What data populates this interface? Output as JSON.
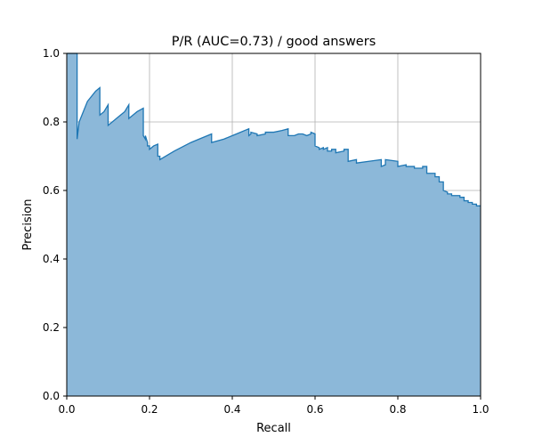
{
  "chart_data": {
    "type": "area",
    "title": "P/R (AUC=0.73) / good answers",
    "xlabel": "Recall",
    "ylabel": "Precision",
    "xlim": [
      0.0,
      1.0
    ],
    "ylim": [
      0.0,
      1.0
    ],
    "xticks": [
      "0.0",
      "0.2",
      "0.4",
      "0.6",
      "0.8",
      "1.0"
    ],
    "yticks": [
      "0.0",
      "0.2",
      "0.4",
      "0.6",
      "0.8",
      "1.0"
    ],
    "grid": true,
    "colors": {
      "line": "#1f77b4",
      "fill": "#8cb8d9",
      "grid": "#b0b0b0"
    },
    "series": [
      {
        "values_x": [
          0.0,
          0.025,
          0.025,
          0.03,
          0.05,
          0.07,
          0.08,
          0.08,
          0.09,
          0.1,
          0.1,
          0.12,
          0.14,
          0.15,
          0.15,
          0.17,
          0.185,
          0.185,
          0.19,
          0.19,
          0.195,
          0.195,
          0.2,
          0.2,
          0.21,
          0.22,
          0.22,
          0.225,
          0.225,
          0.26,
          0.3,
          0.32,
          0.35,
          0.35,
          0.38,
          0.41,
          0.44,
          0.44,
          0.445,
          0.445,
          0.46,
          0.46,
          0.48,
          0.48,
          0.5,
          0.52,
          0.535,
          0.535,
          0.55,
          0.56,
          0.57,
          0.58,
          0.59,
          0.59,
          0.6,
          0.6,
          0.61,
          0.61,
          0.62,
          0.62,
          0.63,
          0.63,
          0.64,
          0.64,
          0.65,
          0.65,
          0.67,
          0.67,
          0.68,
          0.68,
          0.7,
          0.7,
          0.73,
          0.76,
          0.76,
          0.77,
          0.77,
          0.8,
          0.8,
          0.82,
          0.82,
          0.84,
          0.84,
          0.86,
          0.86,
          0.87,
          0.87,
          0.89,
          0.89,
          0.9,
          0.9,
          0.91,
          0.91,
          0.92,
          0.92,
          0.93,
          0.93,
          0.95,
          0.95,
          0.96,
          0.96,
          0.97,
          0.97,
          0.98,
          0.98,
          0.99,
          0.99,
          1.0
        ],
        "values_y": [
          1.0,
          1.0,
          0.75,
          0.8,
          0.86,
          0.89,
          0.9,
          0.82,
          0.83,
          0.85,
          0.79,
          0.81,
          0.83,
          0.85,
          0.81,
          0.83,
          0.84,
          0.76,
          0.75,
          0.76,
          0.74,
          0.73,
          0.73,
          0.72,
          0.73,
          0.735,
          0.7,
          0.7,
          0.69,
          0.715,
          0.74,
          0.75,
          0.765,
          0.74,
          0.75,
          0.765,
          0.78,
          0.76,
          0.765,
          0.77,
          0.765,
          0.76,
          0.765,
          0.77,
          0.77,
          0.775,
          0.78,
          0.76,
          0.76,
          0.765,
          0.765,
          0.76,
          0.765,
          0.77,
          0.765,
          0.73,
          0.725,
          0.72,
          0.725,
          0.72,
          0.725,
          0.715,
          0.715,
          0.72,
          0.72,
          0.71,
          0.715,
          0.72,
          0.72,
          0.685,
          0.69,
          0.68,
          0.685,
          0.69,
          0.67,
          0.675,
          0.69,
          0.685,
          0.67,
          0.675,
          0.67,
          0.67,
          0.665,
          0.665,
          0.67,
          0.67,
          0.65,
          0.65,
          0.64,
          0.64,
          0.625,
          0.625,
          0.6,
          0.595,
          0.59,
          0.59,
          0.585,
          0.585,
          0.58,
          0.58,
          0.57,
          0.57,
          0.565,
          0.565,
          0.56,
          0.56,
          0.555,
          0.555
        ]
      }
    ]
  }
}
